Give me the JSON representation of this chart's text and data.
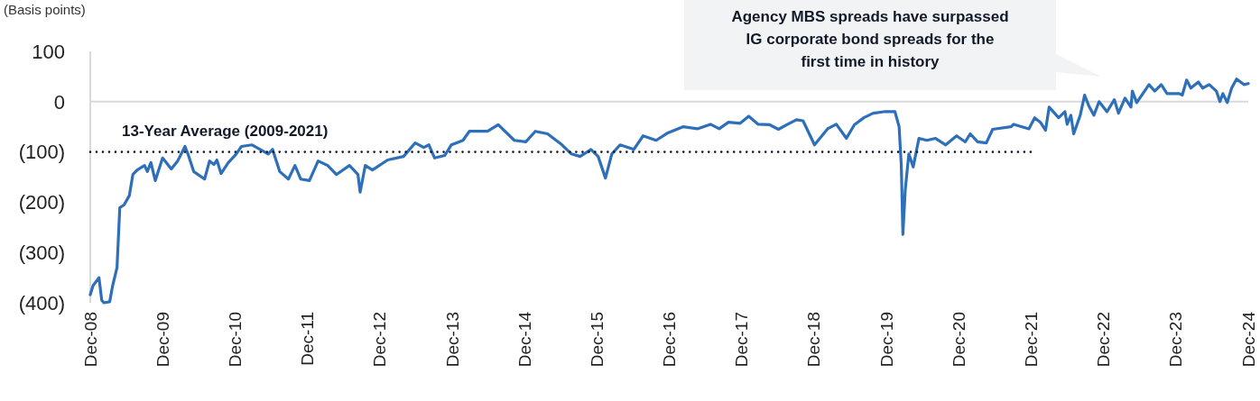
{
  "chart_data": {
    "type": "line",
    "ylabel": "(Basis points)",
    "annotations": [
      "Agency MBS spreads have surpassed IG corporate bond spreads for the first time in history"
    ],
    "xlim": [
      "2008-12",
      "2024-12"
    ],
    "xticks": [
      {
        "value": "2008-12",
        "label": "Dec-08"
      },
      {
        "value": "2009-12",
        "label": "Dec-09"
      },
      {
        "value": "2010-12",
        "label": "Dec-10"
      },
      {
        "value": "2011-12",
        "label": "Dec-11"
      },
      {
        "value": "2012-12",
        "label": "Dec-12"
      },
      {
        "value": "2013-12",
        "label": "Dec-13"
      },
      {
        "value": "2014-12",
        "label": "Dec-14"
      },
      {
        "value": "2015-12",
        "label": "Dec-15"
      },
      {
        "value": "2016-12",
        "label": "Dec-16"
      },
      {
        "value": "2017-12",
        "label": "Dec-17"
      },
      {
        "value": "2018-12",
        "label": "Dec-18"
      },
      {
        "value": "2019-12",
        "label": "Dec-19"
      },
      {
        "value": "2020-12",
        "label": "Dec-20"
      },
      {
        "value": "2021-12",
        "label": "Dec-21"
      },
      {
        "value": "2022-12",
        "label": "Dec-22"
      },
      {
        "value": "2023-12",
        "label": "Dec-23"
      },
      {
        "value": "2024-12",
        "label": "Dec-24"
      }
    ],
    "ylim": [
      -400,
      100
    ],
    "yticks": [
      100,
      0,
      {
        "value": -100,
        "label": "(100)"
      },
      {
        "value": -200,
        "label": "(200)"
      },
      {
        "value": -300,
        "label": "(300)"
      },
      {
        "value": -400,
        "label": "(400)"
      }
    ],
    "grid": false,
    "ref_lines": [
      {
        "axis": "y",
        "value": 0,
        "color": "#d9d9d9"
      }
    ],
    "series": [
      {
        "color": "#2e6fba",
        "line_style": "solid",
        "x": [
          "2008-12-01",
          "2008-12-15",
          "2009-01-14",
          "2009-01-28",
          "2009-02-08",
          "2009-03-09",
          "2009-03-24",
          "2009-04-15",
          "2009-04-29",
          "2009-05-21",
          "2009-06-16",
          "2009-07-04",
          "2009-07-26",
          "2009-09-01",
          "2009-09-15",
          "2009-10-03",
          "2009-10-25",
          "2009-12-01",
          "2010-01-14",
          "2010-02-15",
          "2010-03-24",
          "2010-04-08",
          "2010-05-07",
          "2010-07-01",
          "2010-07-26",
          "2010-08-17",
          "2010-09-01",
          "2010-09-22",
          "2010-10-29",
          "2010-12-08",
          "2011-01-03",
          "2011-02-26",
          "2011-05-18",
          "2011-06-09",
          "2011-07-15",
          "2011-08-28",
          "2011-09-30",
          "2011-10-29",
          "2011-12-12",
          "2012-01-25",
          "2012-03-13",
          "2012-04-26",
          "2012-07-01",
          "2012-08-13",
          "2012-08-24",
          "2012-09-19",
          "2012-10-25",
          "2013-01-10",
          "2013-03-31",
          "2013-05-29",
          "2013-07-11",
          "2013-08-06",
          "2013-09-04",
          "2013-10-25",
          "2013-11-27",
          "2014-01-25",
          "2014-02-26",
          "2014-05-29",
          "2014-07-22",
          "2014-10-11",
          "2014-12-08",
          "2015-01-25",
          "2015-03-28",
          "2015-06-09",
          "2015-07-26",
          "2015-09-08",
          "2015-11-02",
          "2015-12-08",
          "2016-01-14",
          "2016-02-15",
          "2016-03-28",
          "2016-06-05",
          "2016-07-22",
          "2016-09-26",
          "2016-11-24",
          "2017-02-08",
          "2017-04-22",
          "2017-06-27",
          "2017-08-10",
          "2017-09-26",
          "2017-11-24",
          "2018-01-06",
          "2018-02-23",
          "2018-04-22",
          "2018-06-05",
          "2018-07-22",
          "2018-09-04",
          "2018-10-07",
          "2018-12-04",
          "2019-02-08",
          "2019-03-24",
          "2019-05-14",
          "2019-06-23",
          "2019-08-10",
          "2019-09-26",
          "2019-11-20",
          "2020-01-14",
          "2020-02-04",
          "2020-02-15",
          "2020-02-23",
          "2020-03-06",
          "2020-03-24",
          "2020-04-15",
          "2020-05-14",
          "2020-06-23",
          "2020-08-06",
          "2020-09-26",
          "2020-11-20",
          "2021-01-03",
          "2021-01-28",
          "2021-03-06",
          "2021-04-19",
          "2021-05-21",
          "2021-08-21",
          "2021-09-04",
          "2021-11-20",
          "2021-12-19",
          "2022-01-17",
          "2022-02-12",
          "2022-03-02",
          "2022-04-19",
          "2022-05-21",
          "2022-06-01",
          "2022-06-20",
          "2022-07-04",
          "2022-08-06",
          "2022-08-28",
          "2022-09-19",
          "2022-10-14",
          "2022-11-09",
          "2022-12-19",
          "2023-01-25",
          "2023-02-15",
          "2023-03-20",
          "2023-04-19",
          "2023-04-26",
          "2023-05-18",
          "2023-07-19",
          "2023-08-17",
          "2023-09-19",
          "2023-10-18",
          "2023-12-19",
          "2024-01-03",
          "2024-01-25",
          "2024-02-15",
          "2024-03-24",
          "2024-04-15",
          "2024-05-18",
          "2024-06-23",
          "2024-07-11",
          "2024-07-26",
          "2024-08-17",
          "2024-09-08",
          "2024-10-03",
          "2024-11-09",
          "2024-12-01"
        ],
        "values": [
          -384,
          -366,
          -350,
          -395,
          -400,
          -398,
          -366,
          -330,
          -211,
          -205,
          -187,
          -145,
          -136,
          -127,
          -139,
          -121,
          -157,
          -112,
          -134,
          -118,
          -89,
          -104,
          -139,
          -154,
          -118,
          -125,
          -116,
          -143,
          -121,
          -104,
          -89,
          -86,
          -104,
          -95,
          -139,
          -154,
          -127,
          -154,
          -157,
          -118,
          -127,
          -145,
          -127,
          -145,
          -180,
          -127,
          -136,
          -116,
          -109,
          -82,
          -91,
          -86,
          -112,
          -107,
          -86,
          -77,
          -59,
          -59,
          -46,
          -77,
          -80,
          -59,
          -64,
          -86,
          -104,
          -109,
          -95,
          -109,
          -152,
          -104,
          -86,
          -95,
          -68,
          -77,
          -62,
          -50,
          -54,
          -45,
          -54,
          -41,
          -43,
          -29,
          -45,
          -46,
          -55,
          -45,
          -36,
          -38,
          -86,
          -54,
          -45,
          -73,
          -46,
          -32,
          -23,
          -20,
          -20,
          -50,
          -127,
          -264,
          -175,
          -104,
          -130,
          -73,
          -77,
          -73,
          -86,
          -68,
          -80,
          -64,
          -80,
          -82,
          -55,
          -50,
          -45,
          -54,
          -32,
          -41,
          -57,
          -11,
          -32,
          -20,
          -45,
          -27,
          -64,
          -27,
          13,
          -9,
          -27,
          0,
          -20,
          4,
          -23,
          7,
          -11,
          21,
          -2,
          34,
          21,
          34,
          16,
          16,
          13,
          43,
          27,
          39,
          27,
          34,
          21,
          0,
          16,
          -2,
          27,
          45,
          34,
          36
        ]
      },
      {
        "name": "13-Year Average (2009-2021)",
        "color": "#111827",
        "line_style": "dotted",
        "x": [
          "2008-12-01",
          "2021-12-01"
        ],
        "values": [
          -100,
          -100
        ]
      }
    ]
  }
}
